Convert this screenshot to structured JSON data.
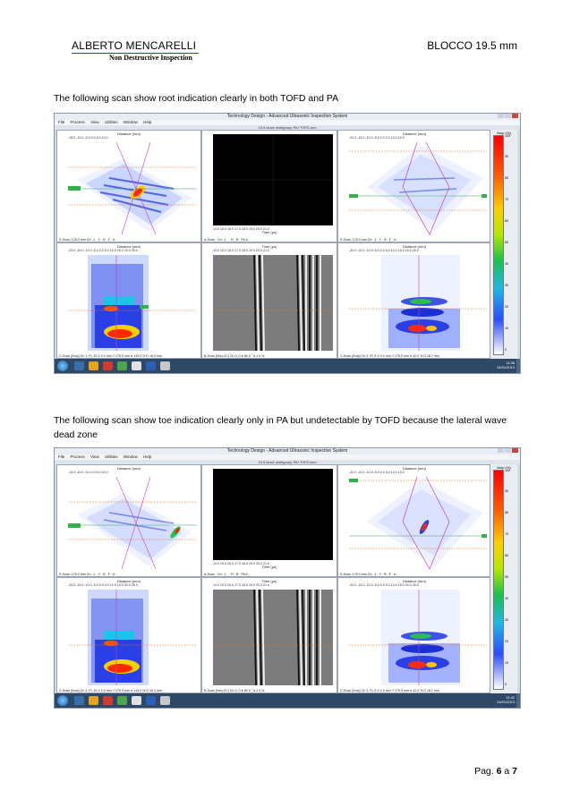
{
  "header": {
    "author": "ALBERTO   MENCARELLI",
    "subtitle": "Non  Destructive Inspection",
    "doc_ref": "BLOCCO 19.5 mm"
  },
  "captions": {
    "first": "The following scan show root indication clearly in both TOFD and PA",
    "second": "The following scan show toe indication clearly only in PA  but undetectable by TOFD because the lateral wave dead zone"
  },
  "app": {
    "window_title": "Technology Design - Advanced Ultrasonic Inspection System",
    "menu": [
      "File",
      "Process",
      "View",
      "Utilities",
      "Window",
      "Help"
    ],
    "file_name": "19.5 block multigroup PA+TOFD.tom",
    "panels": {
      "sscan_left": {
        "title": "Distance (mm)",
        "ticks": "-15.0   -10.0   -5.0    0.0    5.0    10.0",
        "foot": "S-Scan: 175.0 mm   Ch: -1  ·  Y  ·  B  ·  F  ·  A ·"
      },
      "ascan": {
        "title": "Time (µs)",
        "ticks": "14.0   15.0   16.0   17.0   18.0   19.0   20.0   21.0",
        "foot": "A-Scan · Ch: -1 ·  · R  ·  B  ·  Pk A ·"
      },
      "sscan_right": {
        "title": "Distance (mm)",
        "ticks": "-20.0  -15.0  -10.0  -5.0   0.0   5.0   10.0   15.0",
        "foot": "S-Scan: 175.0 mm   Ch: -1  ·  Y  ·  B  ·  F  ·  A ·"
      },
      "cscan_left": {
        "title": "Distance (mm)",
        "ticks": "-20.0  -15.0  -10.0  -5.0   0.0   5.0   10.0   15.0   20.0   25.0",
        "foot": "C-Scan (Amp)  Ch 1; FL 15   X 0.0 mm   Y 175.0 mm   ● 143.0 %   D 16.0 mm"
      },
      "bscan": {
        "title": "Time (µs)",
        "ticks": "14.0   15.0   16.0   17.0   18.0   19.0   20.0   21.0",
        "foot": "B-Scan (Non-VC)   Ch 3; 0   ● 80.0 °   A 1.0 %"
      },
      "cscan_right": {
        "title": "Distance (mm)",
        "ticks": "-20.0  -15.0  -10.0  -5.0   0.0   5.0   10.0   15.0   20.0   25.0",
        "foot": "C-Scan (Amp)  Ch 2; FL 5   X 0.0 mm   Y 175.0 mm   ● 42.0 %   D 16.7 mm"
      }
    },
    "colorbar": {
      "label": "Amp (%)",
      "ticks": [
        "100",
        "90",
        "80",
        "70",
        "60",
        "50",
        "40",
        "30",
        "20",
        "10",
        "0"
      ]
    },
    "clock": {
      "time": "11:38",
      "date": "24/01/2013"
    },
    "clock2": {
      "time": "11:42",
      "date": "24/01/2013"
    }
  },
  "footer": {
    "page_label": "Pag.",
    "page": "6",
    "of": "a",
    "total": "7"
  }
}
